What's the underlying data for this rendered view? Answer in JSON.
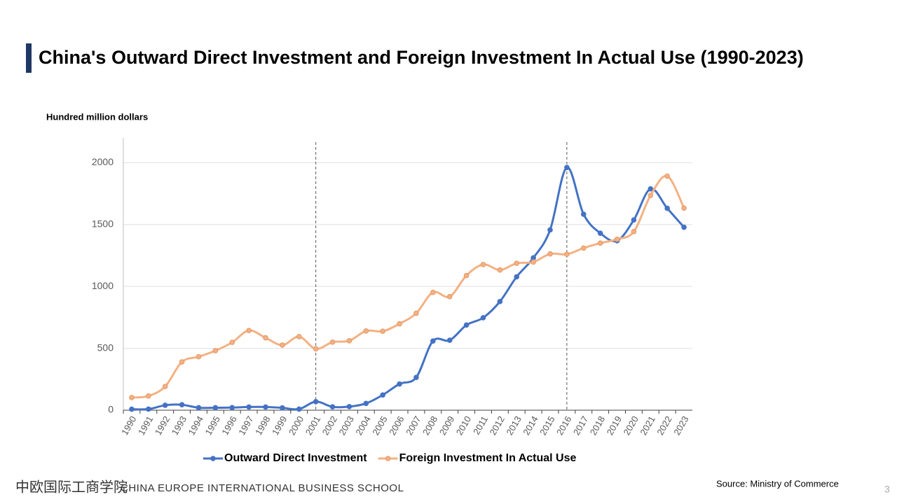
{
  "slide": {
    "title": "China's Outward Direct Investment and Foreign Investment In Actual Use (1990-2023)",
    "source": "Source: Ministry of Commerce",
    "page_number": "3",
    "logo_chinese": "中欧国际工商学院",
    "logo_english": "CHINA EUROPE INTERNATIONAL BUSINESS SCHOOL"
  },
  "chart_data": {
    "type": "line",
    "y_axis_label": "Hundred million dollars",
    "categories": [
      "1990",
      "1991",
      "1992",
      "1993",
      "1994",
      "1995",
      "1996",
      "1997",
      "1998",
      "1999",
      "2000",
      "2001",
      "2002",
      "2003",
      "2004",
      "2005",
      "2006",
      "2007",
      "2008",
      "2009",
      "2010",
      "2011",
      "2012",
      "2013",
      "2014",
      "2015",
      "2016",
      "2017",
      "2018",
      "2019",
      "2020",
      "2021",
      "2022",
      "2023"
    ],
    "series": [
      {
        "name": "Outward Direct Investment",
        "color": "#4472c4",
        "values": [
          8,
          9,
          40,
          44,
          20,
          20,
          21,
          26,
          26,
          19,
          9,
          69,
          27,
          29,
          55,
          123,
          212,
          265,
          559,
          565,
          688,
          747,
          878,
          1078,
          1231,
          1457,
          1961,
          1583,
          1430,
          1369,
          1537,
          1788,
          1631,
          1478
        ]
      },
      {
        "name": "Foreign Investment In Actual Use",
        "color": "#f4b183",
        "values": [
          102,
          115,
          192,
          390,
          432,
          481,
          548,
          644,
          585,
          526,
          594,
          496,
          550,
          561,
          640,
          638,
          698,
          783,
          952,
          918,
          1088,
          1177,
          1133,
          1187,
          1197,
          1263,
          1260,
          1310,
          1350,
          1381,
          1443,
          1735,
          1891,
          1633
        ]
      }
    ],
    "ylim": [
      0,
      2200
    ],
    "yticks": [
      0,
      500,
      1000,
      1500,
      2000
    ],
    "grid": true,
    "reference_lines": [
      "2001",
      "2016"
    ],
    "smooth": true,
    "legend": "bottom"
  }
}
